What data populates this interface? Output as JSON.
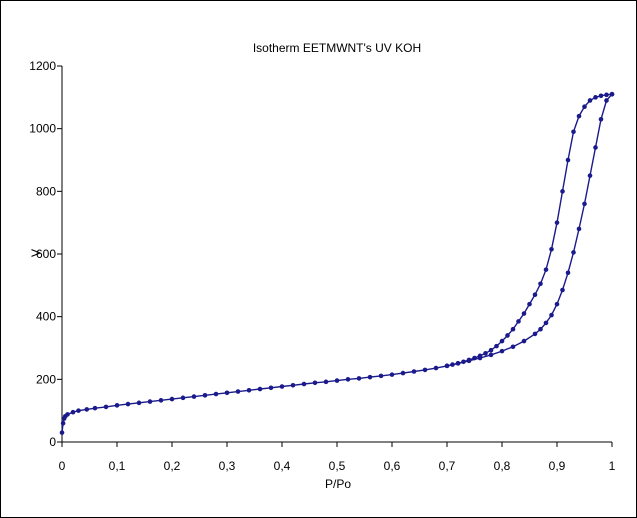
{
  "chart_data": {
    "type": "line",
    "title": "Isotherm EETMWNT's UV KOH",
    "xlabel": "P/Po",
    "ylabel": "V",
    "xlim": [
      0,
      1
    ],
    "ylim": [
      0,
      1200
    ],
    "x_ticks": [
      "0",
      "0,1",
      "0,2",
      "0,3",
      "0,4",
      "0,5",
      "0,6",
      "0,7",
      "0,8",
      "0,9",
      "1"
    ],
    "y_ticks": [
      "0",
      "200",
      "400",
      "600",
      "800",
      "1000",
      "1200"
    ],
    "x_tick_values": [
      0,
      0.1,
      0.2,
      0.3,
      0.4,
      0.5,
      0.6,
      0.7,
      0.8,
      0.9,
      1.0
    ],
    "y_tick_values": [
      0,
      200,
      400,
      600,
      800,
      1000,
      1200
    ],
    "grid": false,
    "legend": "none",
    "color": "#1a1a8c",
    "series": [
      {
        "x": [
          0.0,
          0.002,
          0.004,
          0.006,
          0.01,
          0.02,
          0.03,
          0.045,
          0.06,
          0.08,
          0.1,
          0.12,
          0.14,
          0.16,
          0.18,
          0.2,
          0.22,
          0.24,
          0.26,
          0.28,
          0.3,
          0.32,
          0.34,
          0.36,
          0.38,
          0.4,
          0.42,
          0.44,
          0.46,
          0.48,
          0.5,
          0.52,
          0.54,
          0.56,
          0.58,
          0.6,
          0.62,
          0.64,
          0.66,
          0.68,
          0.7,
          0.72,
          0.74,
          0.76,
          0.78,
          0.8,
          0.82,
          0.84,
          0.86,
          0.87,
          0.88,
          0.89,
          0.9,
          0.91,
          0.92,
          0.93,
          0.94,
          0.95,
          0.96,
          0.97,
          0.98,
          0.99,
          1.0
        ],
        "y": [
          30,
          60,
          75,
          82,
          88,
          95,
          100,
          104,
          108,
          112,
          117,
          121,
          125,
          129,
          133,
          137,
          141,
          145,
          149,
          153,
          157,
          161,
          165,
          169,
          173,
          177,
          181,
          185,
          189,
          192,
          196,
          200,
          203,
          207,
          211,
          215,
          220,
          225,
          230,
          236,
          243,
          251,
          259,
          268,
          278,
          290,
          304,
          322,
          345,
          360,
          380,
          405,
          440,
          485,
          540,
          605,
          680,
          760,
          850,
          940,
          1030,
          1090,
          1110
        ]
      },
      {
        "x": [
          1.0,
          0.99,
          0.98,
          0.97,
          0.96,
          0.95,
          0.94,
          0.93,
          0.92,
          0.91,
          0.9,
          0.89,
          0.88,
          0.87,
          0.86,
          0.85,
          0.84,
          0.83,
          0.82,
          0.81,
          0.8,
          0.79,
          0.78,
          0.77,
          0.76,
          0.75,
          0.74,
          0.73,
          0.72,
          0.71,
          0.7
        ],
        "y": [
          1110,
          1108,
          1105,
          1100,
          1090,
          1070,
          1040,
          990,
          900,
          800,
          700,
          615,
          550,
          505,
          470,
          440,
          410,
          385,
          360,
          340,
          322,
          306,
          293,
          283,
          275,
          268,
          262,
          256,
          251,
          247,
          243
        ]
      }
    ]
  }
}
